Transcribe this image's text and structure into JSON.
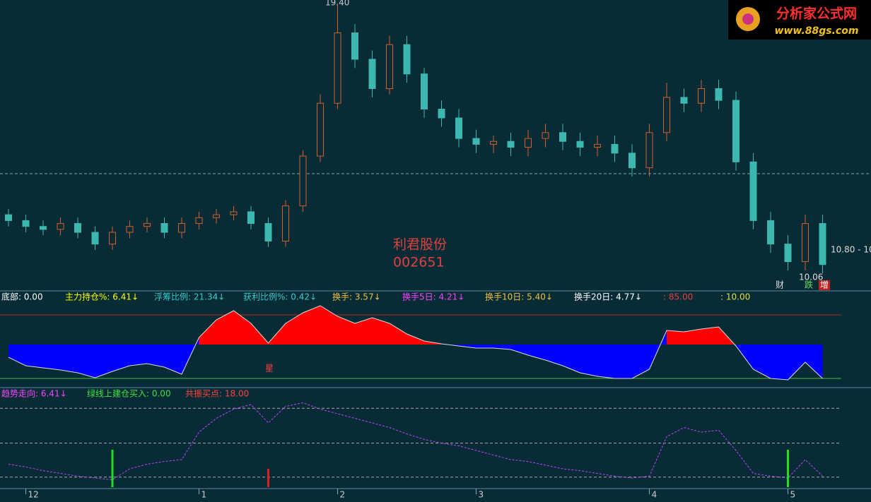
{
  "stock": {
    "name": "利君股份",
    "code": "002651"
  },
  "logo": {
    "title": "分析家公式网",
    "url": "www.88gs.com"
  },
  "price_labels": {
    "high": "19.40",
    "right": "10.80 - 10",
    "low": "10.06"
  },
  "flags": [
    "财",
    "跌",
    "增"
  ],
  "price_scale": {
    "top": 19.4,
    "bottom": 10.06,
    "reference_line": 13.6
  },
  "candles": [
    [
      12.2,
      12.0,
      12.4,
      11.8
    ],
    [
      12.0,
      11.8,
      12.2,
      11.6
    ],
    [
      11.8,
      11.7,
      12.0,
      11.5
    ],
    [
      11.7,
      11.9,
      12.1,
      11.5
    ],
    [
      11.9,
      11.6,
      12.1,
      11.4
    ],
    [
      11.6,
      11.2,
      11.8,
      11.0
    ],
    [
      11.2,
      11.6,
      11.8,
      11.0
    ],
    [
      11.6,
      11.8,
      12.0,
      11.4
    ],
    [
      11.8,
      11.9,
      12.1,
      11.6
    ],
    [
      11.9,
      11.6,
      12.1,
      11.4
    ],
    [
      11.6,
      11.9,
      12.1,
      11.4
    ],
    [
      11.9,
      12.1,
      12.3,
      11.7
    ],
    [
      12.1,
      12.2,
      12.4,
      11.9
    ],
    [
      12.2,
      12.3,
      12.5,
      12.0
    ],
    [
      12.3,
      11.9,
      12.5,
      11.7
    ],
    [
      11.9,
      11.3,
      12.1,
      11.1
    ],
    [
      11.3,
      12.5,
      12.7,
      11.1
    ],
    [
      12.5,
      14.2,
      14.4,
      12.3
    ],
    [
      14.2,
      16.0,
      16.3,
      14.0
    ],
    [
      16.0,
      18.4,
      19.4,
      15.8
    ],
    [
      18.4,
      17.5,
      18.7,
      17.2
    ],
    [
      17.5,
      16.5,
      17.8,
      16.2
    ],
    [
      16.5,
      18.0,
      18.3,
      16.3
    ],
    [
      18.0,
      17.0,
      18.3,
      16.7
    ],
    [
      17.0,
      15.8,
      17.2,
      15.5
    ],
    [
      15.8,
      15.5,
      16.1,
      15.2
    ],
    [
      15.5,
      14.8,
      15.8,
      14.5
    ],
    [
      14.8,
      14.6,
      15.1,
      14.3
    ],
    [
      14.6,
      14.7,
      14.9,
      14.3
    ],
    [
      14.7,
      14.5,
      15.0,
      14.2
    ],
    [
      14.5,
      14.8,
      15.1,
      14.2
    ],
    [
      14.8,
      15.0,
      15.3,
      14.5
    ],
    [
      15.0,
      14.7,
      15.3,
      14.4
    ],
    [
      14.7,
      14.5,
      15.0,
      14.2
    ],
    [
      14.5,
      14.6,
      14.9,
      14.2
    ],
    [
      14.6,
      14.3,
      14.9,
      14.0
    ],
    [
      14.3,
      13.8,
      14.6,
      13.5
    ],
    [
      13.8,
      15.0,
      15.3,
      13.5
    ],
    [
      15.0,
      16.2,
      16.7,
      14.7
    ],
    [
      16.2,
      16.0,
      16.5,
      15.7
    ],
    [
      16.0,
      16.5,
      16.8,
      15.7
    ],
    [
      16.5,
      16.1,
      16.8,
      15.8
    ],
    [
      16.1,
      14.0,
      16.4,
      13.7
    ],
    [
      14.0,
      12.0,
      14.3,
      11.7
    ],
    [
      12.0,
      11.2,
      12.3,
      10.9
    ],
    [
      11.2,
      10.6,
      11.5,
      10.3
    ],
    [
      10.6,
      11.9,
      12.2,
      10.3
    ],
    [
      11.9,
      10.5,
      12.2,
      10.2
    ]
  ],
  "x_axis": [
    {
      "index": 1,
      "label": "12"
    },
    {
      "index": 11,
      "label": "1"
    },
    {
      "index": 19,
      "label": "2"
    },
    {
      "index": 27,
      "label": "3"
    },
    {
      "index": 37,
      "label": "4"
    },
    {
      "index": 45,
      "label": "5"
    }
  ],
  "panel2": {
    "labels": [
      "底部: 0.00",
      "主力持仓%: 6.41↓",
      "浮筹比例: 21.34↓",
      "获利比例%: 0.42↓",
      "换手: 3.57↓",
      "换手5日: 4.21↓",
      "换手10日: 5.40↓",
      "换手20日: 4.77↓",
      ": 85.00",
      ": 10.00"
    ],
    "marker": "星",
    "values": [
      -18,
      -30,
      -33,
      -36,
      -40,
      -47,
      -38,
      -30,
      -27,
      -32,
      -42,
      10,
      35,
      48,
      30,
      2,
      30,
      45,
      55,
      40,
      30,
      38,
      30,
      15,
      5,
      1,
      -2,
      -5,
      -5,
      -7,
      -15,
      -22,
      -30,
      -40,
      -45,
      -48,
      -48,
      -35,
      20,
      18,
      22,
      25,
      -2,
      -35,
      -48,
      -50,
      -25,
      -48
    ],
    "top_line": 42,
    "bottom_line": -48
  },
  "panel3": {
    "labels": [
      "趋势走向: 6.41↓",
      "绿线上建仓买入: 0.00",
      "共振买点: 18.00"
    ],
    "values": [
      25,
      22,
      18,
      15,
      12,
      10,
      8,
      20,
      25,
      28,
      30,
      60,
      75,
      85,
      90,
      70,
      88,
      92,
      85,
      80,
      75,
      70,
      65,
      58,
      52,
      48,
      45,
      40,
      35,
      30,
      28,
      24,
      20,
      18,
      15,
      12,
      10,
      12,
      55,
      65,
      60,
      62,
      40,
      15,
      12,
      10,
      30,
      12
    ],
    "levels": [
      86,
      48,
      11
    ],
    "green_signals": [
      6,
      45
    ],
    "red_signals": [
      15
    ]
  }
}
